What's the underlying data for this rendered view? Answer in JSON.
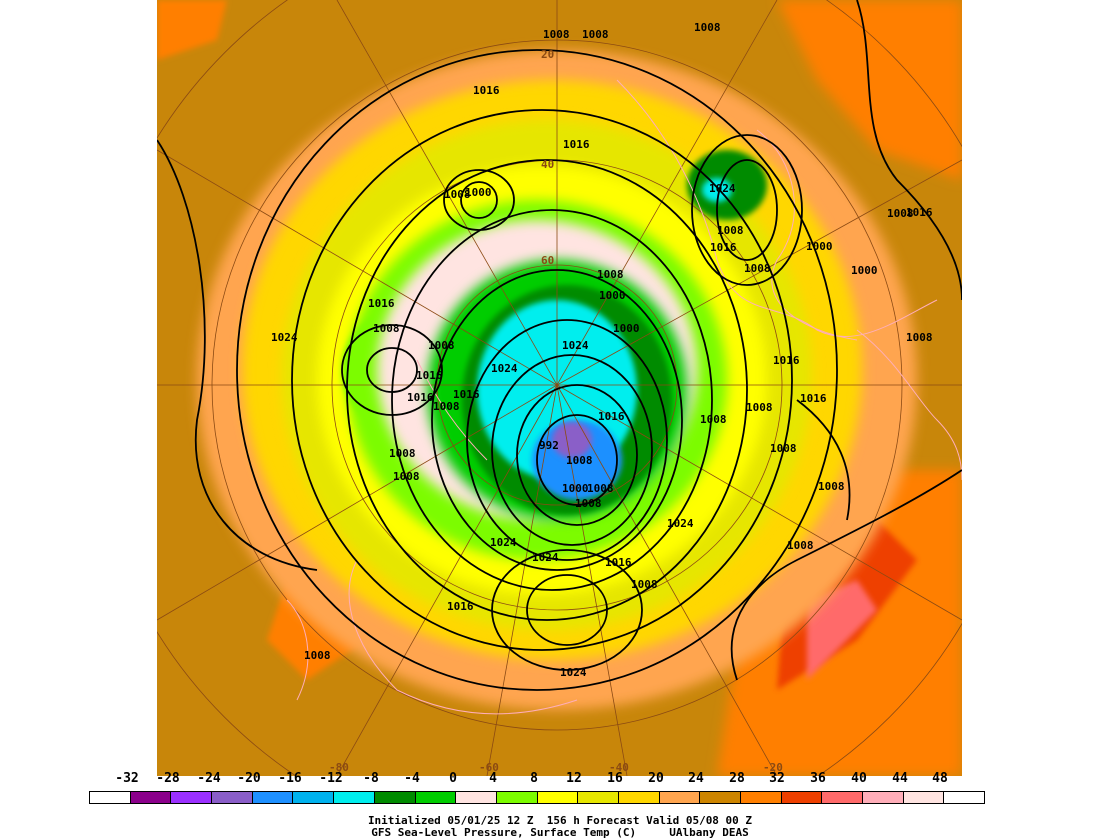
{
  "legend": {
    "ticks": [
      "-32",
      "-28",
      "-24",
      "-20",
      "-16",
      "-12",
      "-8",
      "-4",
      "0",
      "4",
      "8",
      "12",
      "16",
      "20",
      "24",
      "28",
      "32",
      "36",
      "40",
      "44",
      "48"
    ],
    "colors": [
      "#ffffff",
      "#8b008b",
      "#9b30ff",
      "#8a5ec8",
      "#1e90ff",
      "#00b2ee",
      "#00eeee",
      "#008b00",
      "#00cd00",
      "#ffe4e1",
      "#7cfc00",
      "#ffff00",
      "#e6e600",
      "#ffd700",
      "#ffa54f",
      "#cd8500",
      "#ff7f00",
      "#ee4000",
      "#ff6a6a",
      "#ffaeb9",
      "#ffe4e1",
      "#ffffff"
    ]
  },
  "caption": {
    "line1": "Initialized 05/01/25 12 Z  156 h Forecast Valid 05/08 00 Z",
    "line2": "GFS Sea-Level Pressure, Surface Temp (C)     UAlbany DEAS"
  },
  "map": {
    "pressure_labels": [
      "1008",
      "1008",
      "1008",
      "1016",
      "1016",
      "1000",
      "1008",
      "1024",
      "1008",
      "1000",
      "1016",
      "1024",
      "1008",
      "1008",
      "1016",
      "1008",
      "1000",
      "1000",
      "1024",
      "1008",
      "1016",
      "1024",
      "1016",
      "1016",
      "1016",
      "1008",
      "1008",
      "992",
      "1000",
      "1008",
      "1016",
      "1008",
      "1008",
      "1008",
      "1016",
      "1008",
      "1008",
      "1008",
      "1024",
      "1024",
      "1024",
      "1016",
      "1008",
      "1008",
      "1016",
      "1024",
      "1008",
      "1000",
      "1008",
      "1016",
      "1008",
      "1008"
    ],
    "grid_labels": [
      "20",
      "40",
      "60",
      "-80",
      "-60",
      "-40",
      "-20"
    ]
  }
}
